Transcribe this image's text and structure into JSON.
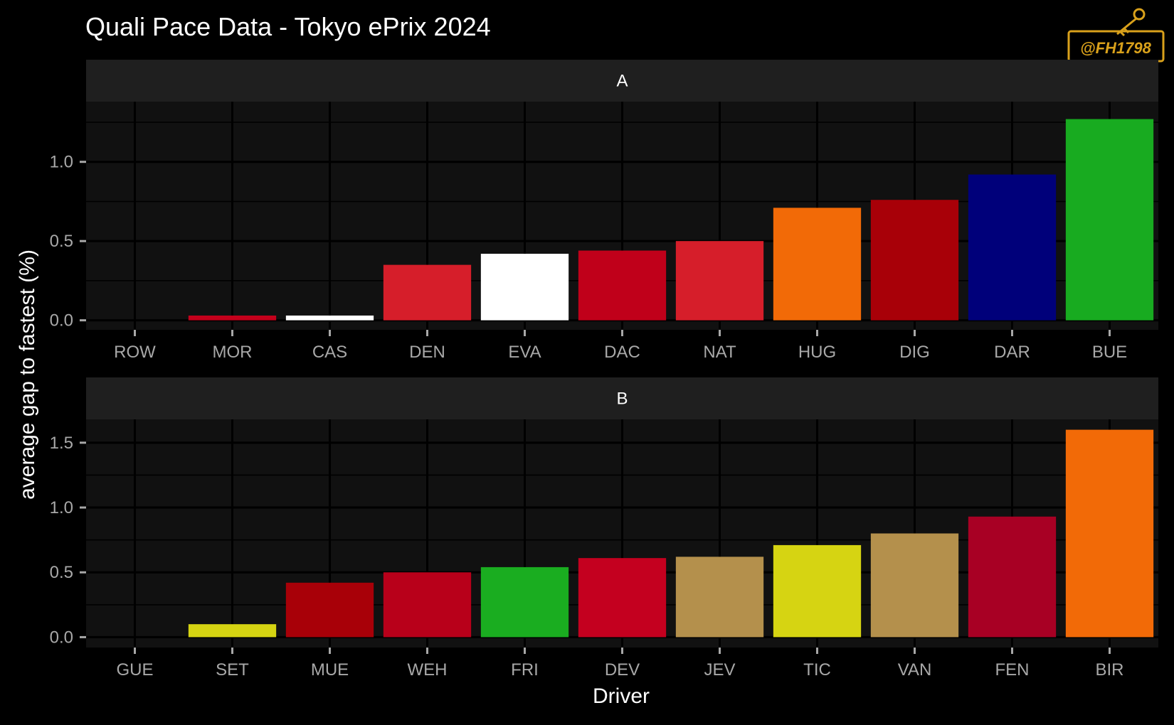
{
  "title": "Quali Pace Data - Tokyo ePrix 2024",
  "watermark": "@FH1798",
  "colors": {
    "background": "#000000",
    "panel": "#111111",
    "strip": "#1f1f1f",
    "grid": "#000000",
    "watermark": "#d9a11b"
  },
  "chart_data": {
    "type": "bar",
    "xlabel": "Driver",
    "ylabel": "average gap to fastest (%)",
    "grid": true,
    "panels": [
      {
        "label": "A",
        "categories": [
          "ROW",
          "MOR",
          "CAS",
          "DEN",
          "EVA",
          "DAC",
          "NAT",
          "HUG",
          "DIG",
          "DAR",
          "BUE"
        ],
        "values": [
          0.0,
          0.03,
          0.03,
          0.35,
          0.42,
          0.44,
          0.5,
          0.71,
          0.76,
          0.92,
          1.27
        ],
        "colors": [
          "#d3d3d3",
          "#c4001b",
          "#ffffff",
          "#d61e2a",
          "#ffffff",
          "#c0001a",
          "#d61e2a",
          "#f26a07",
          "#a80008",
          "#00007a",
          "#18ab20"
        ],
        "ylim": [
          -0.06,
          1.38
        ],
        "yticks": [
          0.0,
          0.5,
          1.0
        ],
        "ytick_labels": [
          "0.0",
          "0.5",
          "1.0"
        ]
      },
      {
        "label": "B",
        "categories": [
          "GUE",
          "SET",
          "MUE",
          "WEH",
          "FRI",
          "DEV",
          "JEV",
          "TIC",
          "VAN",
          "FEN",
          "BIR"
        ],
        "values": [
          0.0,
          0.1,
          0.42,
          0.5,
          0.54,
          0.61,
          0.62,
          0.71,
          0.8,
          0.93,
          1.6
        ],
        "colors": [
          "#d3d3d3",
          "#d6d412",
          "#a80008",
          "#b8001a",
          "#1aad20",
          "#c4001f",
          "#b4904c",
          "#d6d412",
          "#b4904c",
          "#a80024",
          "#f26a07"
        ],
        "ylim": [
          -0.08,
          1.68
        ],
        "yticks": [
          0.0,
          0.5,
          1.0,
          1.5
        ],
        "ytick_labels": [
          "0.0",
          "0.5",
          "1.0",
          "1.5"
        ]
      }
    ]
  }
}
